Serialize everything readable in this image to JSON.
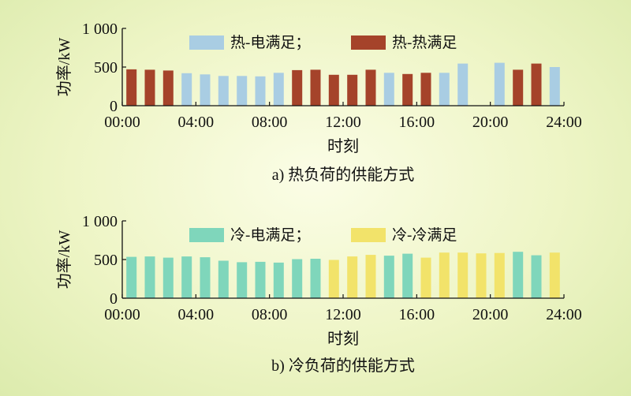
{
  "colors": {
    "heat_elec": "#a9cde3",
    "heat_heat": "#a5432a",
    "cool_elec": "#7fd6bb",
    "cool_cool": "#f2e36a"
  },
  "chart_data": [
    {
      "type": "bar",
      "caption": "a) 热负荷的供能方式",
      "xlabel": "时刻",
      "ylabel": "功率/kW",
      "ylim": [
        0,
        1000
      ],
      "yticks": [
        "0",
        "500",
        "1 000"
      ],
      "xticks": [
        "00:00",
        "04:00",
        "08:00",
        "12:00",
        "16:00",
        "20:00",
        "24:00"
      ],
      "legend_placement": "top",
      "series": [
        {
          "name": "热-电满足；",
          "color_key": "heat_elec"
        },
        {
          "name": "热-热满足",
          "color_key": "heat_heat"
        }
      ],
      "hours": [
        1,
        2,
        3,
        4,
        5,
        6,
        7,
        8,
        9,
        10,
        11,
        12,
        13,
        14,
        15,
        16,
        17,
        18,
        19,
        21,
        22,
        23,
        24
      ],
      "values": [
        470,
        465,
        455,
        420,
        405,
        385,
        385,
        380,
        425,
        460,
        465,
        400,
        400,
        465,
        425,
        410,
        425,
        425,
        545,
        555,
        465,
        545,
        500
      ],
      "source": [
        1,
        1,
        1,
        0,
        0,
        0,
        0,
        0,
        0,
        1,
        1,
        1,
        1,
        1,
        0,
        1,
        1,
        0,
        0,
        0,
        1,
        1,
        0
      ]
    },
    {
      "type": "bar",
      "caption": "b) 冷负荷的供能方式",
      "xlabel": "时刻",
      "ylabel": "功率/kW",
      "ylim": [
        0,
        1000
      ],
      "yticks": [
        "0",
        "500",
        "1 000"
      ],
      "xticks": [
        "00:00",
        "04:00",
        "08:00",
        "12:00",
        "16:00",
        "20:00",
        "24:00"
      ],
      "legend_placement": "top",
      "series": [
        {
          "name": "冷-电满足；",
          "color_key": "cool_elec"
        },
        {
          "name": "冷-冷满足",
          "color_key": "cool_cool"
        }
      ],
      "hours": [
        1,
        2,
        3,
        4,
        5,
        6,
        7,
        8,
        9,
        10,
        11,
        12,
        13,
        14,
        15,
        16,
        17,
        18,
        19,
        20,
        21,
        22,
        23,
        24
      ],
      "values": [
        535,
        540,
        525,
        540,
        530,
        485,
        465,
        470,
        460,
        505,
        510,
        495,
        540,
        560,
        550,
        575,
        525,
        590,
        590,
        580,
        585,
        600,
        555,
        590
      ],
      "source": [
        0,
        0,
        0,
        0,
        0,
        0,
        0,
        0,
        0,
        0,
        0,
        1,
        1,
        1,
        0,
        0,
        1,
        1,
        1,
        1,
        1,
        0,
        0,
        1
      ]
    }
  ]
}
